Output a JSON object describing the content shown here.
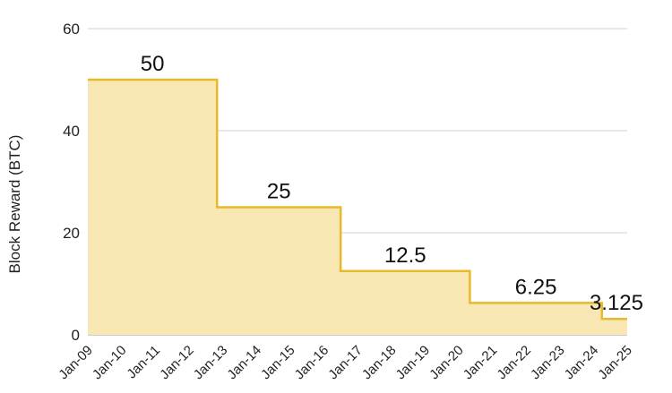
{
  "chart_data": {
    "type": "area",
    "step": true,
    "title": "",
    "xlabel": "",
    "ylabel": "Block Reward (BTC)",
    "ylim": [
      0,
      60
    ],
    "yticks": [
      0,
      20,
      40,
      60
    ],
    "grid": true,
    "legend": "none",
    "x_tick_labels": [
      "Jan-09",
      "Jan-10",
      "Jan-11",
      "Jan-12",
      "Jan-13",
      "Jan-14",
      "Jan-15",
      "Jan-16",
      "Jan-17",
      "Jan-18",
      "Jan-19",
      "Jan-20",
      "Jan-21",
      "Jan-22",
      "Jan-23",
      "Jan-24",
      "Jan-25"
    ],
    "steps": [
      {
        "start": "Jan-09",
        "end": "Nov-12",
        "value": 50,
        "label": "50"
      },
      {
        "start": "Nov-12",
        "end": "Jul-16",
        "value": 25,
        "label": "25"
      },
      {
        "start": "Jul-16",
        "end": "May-20",
        "value": 12.5,
        "label": "12.5"
      },
      {
        "start": "May-20",
        "end": "Apr-24",
        "value": 6.25,
        "label": "6.25"
      },
      {
        "start": "Apr-24",
        "end": "Jan-25",
        "value": 3.125,
        "label": "3.125"
      }
    ],
    "colors": {
      "fill": "#f8e6b3",
      "line": "#e8b92a",
      "grid": "#d0d0d0"
    }
  }
}
